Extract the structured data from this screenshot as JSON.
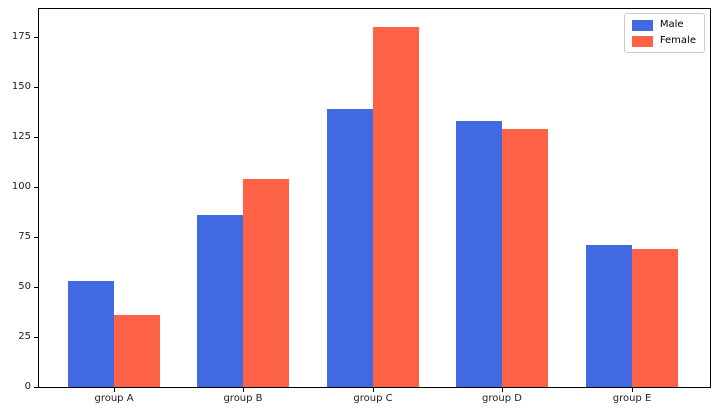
{
  "chart_data": {
    "type": "bar",
    "title": "",
    "xlabel": "",
    "ylabel": "",
    "categories": [
      "group A",
      "group B",
      "group C",
      "group D",
      "group E"
    ],
    "series": [
      {
        "name": "Male",
        "color": "#4169E1",
        "values": [
          53,
          86,
          139,
          133,
          71
        ]
      },
      {
        "name": "Female",
        "color": "#FF6347",
        "values": [
          36,
          104,
          180,
          129,
          69
        ]
      }
    ],
    "ylim": [
      0,
      189
    ],
    "yticks": [
      0,
      25,
      50,
      75,
      100,
      125,
      150,
      175
    ],
    "grid": false,
    "legend_position": "upper right",
    "background_color": "#ffffff",
    "spine_color": "#000000"
  },
  "legend": {
    "items": [
      {
        "label": "Male",
        "color": "#4169E1"
      },
      {
        "label": "Female",
        "color": "#FF6347"
      }
    ]
  }
}
